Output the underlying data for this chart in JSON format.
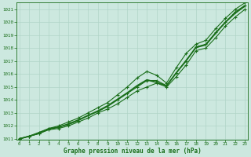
{
  "x": [
    0,
    1,
    2,
    3,
    4,
    5,
    6,
    7,
    8,
    9,
    10,
    11,
    12,
    13,
    14,
    15,
    16,
    17,
    18,
    19,
    20,
    21,
    22,
    23
  ],
  "line_main": [
    1011.0,
    1011.2,
    1011.4,
    1011.8,
    1011.9,
    1012.1,
    1012.4,
    1012.8,
    1013.1,
    1013.5,
    1014.0,
    1014.5,
    1015.0,
    1015.5,
    1015.5,
    1015.1,
    1016.1,
    1017.0,
    1018.1,
    1018.3,
    1019.2,
    1020.0,
    1020.8,
    1021.3
  ],
  "line_upper": [
    1011.0,
    1011.2,
    1011.5,
    1011.8,
    1012.0,
    1012.3,
    1012.6,
    1013.0,
    1013.4,
    1013.8,
    1014.4,
    1015.0,
    1015.7,
    1016.2,
    1015.9,
    1015.3,
    1016.5,
    1017.6,
    1018.3,
    1018.6,
    1019.5,
    1020.3,
    1021.0,
    1021.5
  ],
  "line_lower": [
    1011.0,
    1011.2,
    1011.4,
    1011.7,
    1011.8,
    1012.0,
    1012.3,
    1012.6,
    1013.0,
    1013.3,
    1013.7,
    1014.2,
    1014.7,
    1015.0,
    1015.3,
    1015.0,
    1015.8,
    1016.7,
    1017.8,
    1018.0,
    1018.8,
    1019.7,
    1020.4,
    1021.0
  ],
  "line_smooth": [
    1011.0,
    1011.2,
    1011.45,
    1011.75,
    1011.9,
    1012.15,
    1012.45,
    1012.8,
    1013.15,
    1013.55,
    1014.05,
    1014.55,
    1015.1,
    1015.55,
    1015.35,
    1015.1,
    1016.1,
    1017.05,
    1018.05,
    1018.25,
    1019.15,
    1020.0,
    1020.7,
    1021.25
  ],
  "line_color": "#1a6e1a",
  "bg_color": "#cce8df",
  "grid_color": "#b0d4c8",
  "xlabel": "Graphe pression niveau de la mer (hPa)",
  "ylim_min": 1011.0,
  "ylim_max": 1021.5,
  "yticks": [
    1011,
    1012,
    1013,
    1014,
    1015,
    1016,
    1017,
    1018,
    1019,
    1020,
    1021
  ],
  "xticks": [
    0,
    1,
    2,
    3,
    4,
    5,
    6,
    7,
    8,
    9,
    10,
    11,
    12,
    13,
    14,
    15,
    16,
    17,
    18,
    19,
    20,
    21,
    22,
    23
  ],
  "tick_fontsize": 4.2,
  "xlabel_fontsize": 5.5
}
